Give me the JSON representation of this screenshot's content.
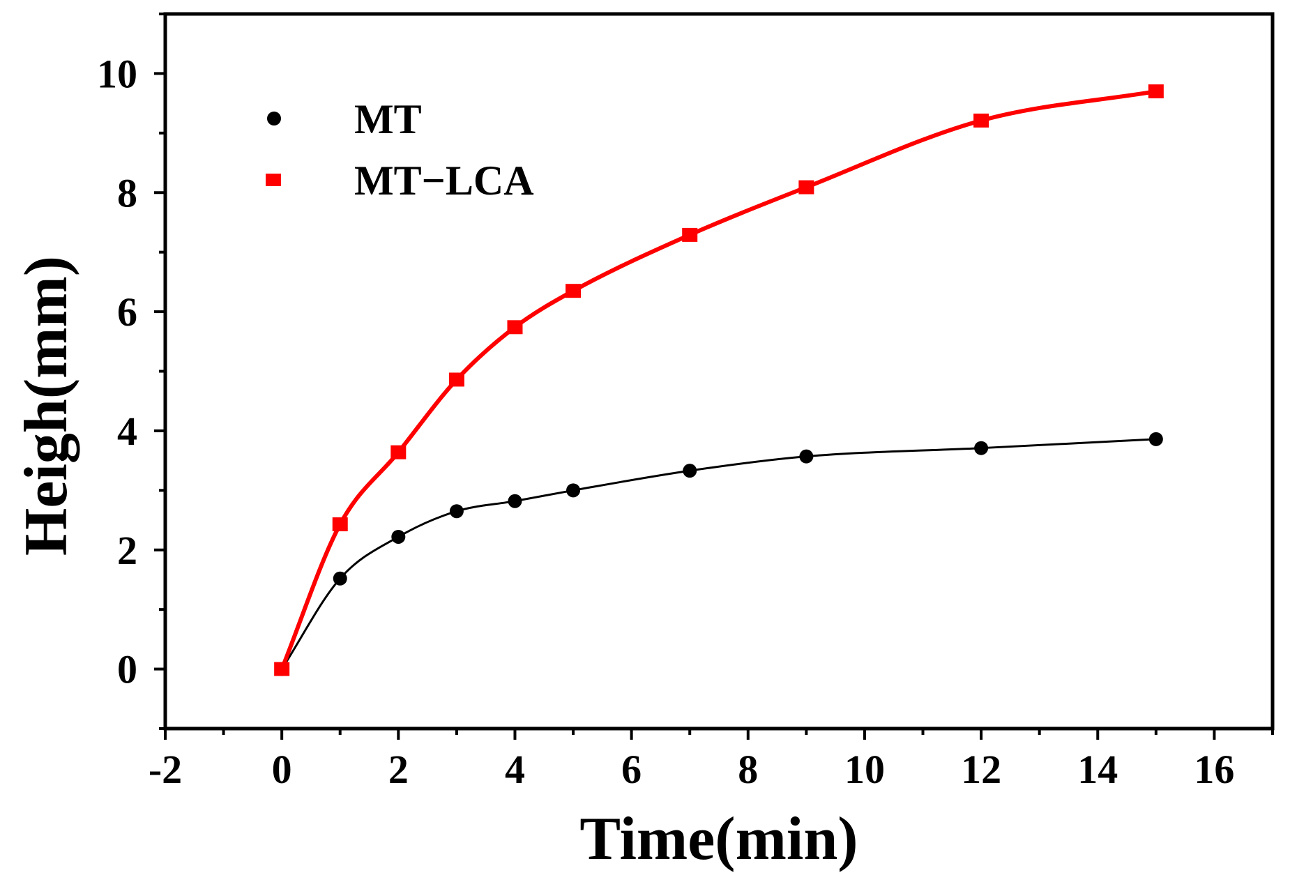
{
  "chart_data": {
    "type": "scatter",
    "title": "",
    "xlabel": "Time(min)",
    "ylabel": "Heigh(mm)",
    "xlim": [
      -2,
      17
    ],
    "ylim": [
      -1,
      11
    ],
    "xticks": [
      -2,
      0,
      2,
      4,
      6,
      8,
      10,
      12,
      14,
      16
    ],
    "xtick_labels": [
      "-2",
      "0",
      "2",
      "4",
      "6",
      "8",
      "10",
      "12",
      "14",
      "16"
    ],
    "yticks": [
      0,
      2,
      4,
      6,
      8,
      10
    ],
    "ytick_labels": [
      "0",
      "2",
      "4",
      "6",
      "8",
      "10"
    ],
    "legend_position": "top-left",
    "series": [
      {
        "name": "MT",
        "marker": "circle",
        "color": "#000000",
        "x": [
          0,
          1,
          2,
          3,
          4,
          5,
          7,
          9,
          12,
          15
        ],
        "y": [
          0,
          1.52,
          2.22,
          2.65,
          2.82,
          3.0,
          3.33,
          3.57,
          3.71,
          3.86
        ],
        "fit": "line"
      },
      {
        "name": "MT−LCA",
        "marker": "square",
        "color": "#ff0000",
        "x": [
          0,
          1,
          2,
          3,
          4,
          5,
          7,
          9,
          12,
          15
        ],
        "y": [
          0,
          2.43,
          3.64,
          4.86,
          5.74,
          6.35,
          7.29,
          8.09,
          9.21,
          9.7
        ],
        "fit": "line"
      }
    ]
  }
}
